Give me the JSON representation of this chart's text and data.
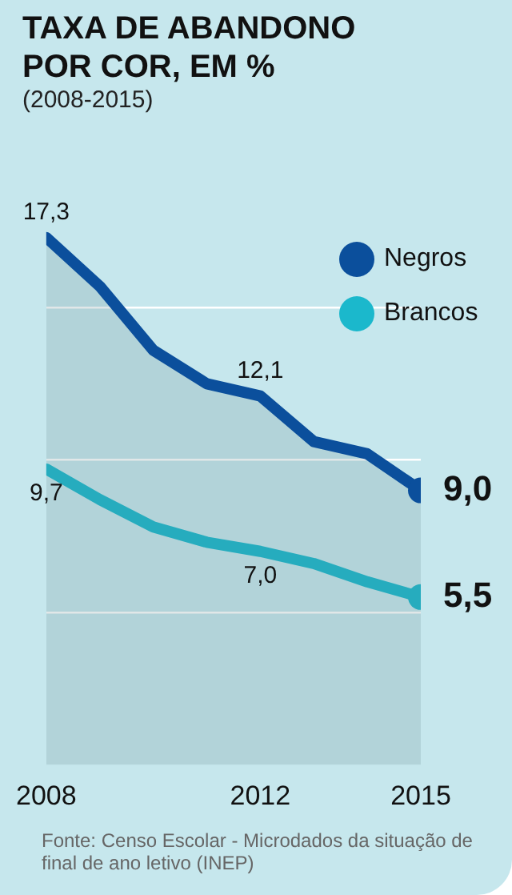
{
  "chart_data": {
    "type": "line",
    "title": "TAXA DE ABANDONO POR COR, EM %",
    "subtitle": "(2008-2015)",
    "x": [
      2008,
      2009,
      2010,
      2011,
      2012,
      2013,
      2014,
      2015
    ],
    "series": [
      {
        "name": "Negros",
        "type": "area",
        "color": "#0b4f9c",
        "values": [
          17.3,
          15.7,
          13.6,
          12.5,
          12.1,
          10.6,
          10.2,
          9.0
        ],
        "value_labels": [
          "17,3",
          null,
          null,
          null,
          "12,1",
          null,
          null,
          "9,0"
        ]
      },
      {
        "name": "Brancos",
        "color": "#1bb8cc",
        "values": [
          9.7,
          8.7,
          7.8,
          7.3,
          7.0,
          6.6,
          6.0,
          5.5
        ],
        "value_labels": [
          "9,7",
          null,
          null,
          null,
          "7,0",
          null,
          null,
          "5,5"
        ]
      }
    ],
    "xlim": [
      2008,
      2015
    ],
    "xticks": [
      2008,
      2012,
      2015
    ],
    "yticks": [
      {
        "value": 5,
        "label": null
      },
      {
        "value": 10,
        "label": null
      },
      {
        "value": 15,
        "label": null
      }
    ],
    "grid": "y",
    "tick_labels": "x",
    "legend": "top right",
    "annotations": [
      "Fonte: Censo Escolar - Microdados da situação de final de ano letivo (INEP)"
    ]
  }
}
